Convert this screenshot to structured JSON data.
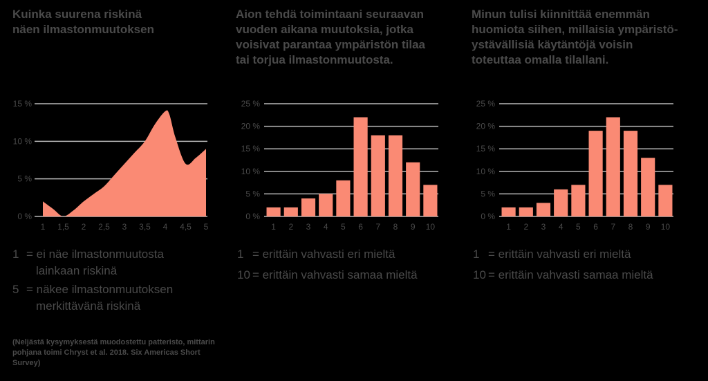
{
  "accent": "#fa8a74",
  "gridColor": "#b9b9b9",
  "panels": [
    {
      "title": "Kuinka suurena riskinä\nnäen ilmastonmuutoksen",
      "legend": [
        {
          "key": "1",
          "text1": "= ei näe ilmastonmuutosta",
          "text2": "lainkaan riskinä"
        },
        {
          "key": "5",
          "text1": "= näkee ilmastonmuutoksen",
          "text2": "merkittävänä riskinä"
        }
      ]
    },
    {
      "title": "Aion tehdä toimintaani seuraavan\nvuoden aikana muutoksia, jotka\nvoisivat parantaa ympäristön tilaa\ntai torjua ilmastonmuutosta.",
      "legend": [
        {
          "key": "1",
          "text1": "= erittäin vahvasti eri mieltä"
        },
        {
          "key": "10",
          "text1": "= erittäin vahvasti samaa mieltä"
        }
      ]
    },
    {
      "title": "Minun tulisi kiinnittää enemmän\nhuomiota siihen, millaisia ympäristö-\nystävällisiä käytäntöjä voisin\ntoteuttaa omalla tilallani.",
      "legend": [
        {
          "key": "1",
          "text1": "= erittäin vahvasti eri mieltä"
        },
        {
          "key": "10",
          "text1": "= erittäin vahvasti samaa mieltä"
        }
      ]
    }
  ],
  "note": "(Neljästä kysymyksestä muodostettu patteristo, mittarin pohjana toimi Chryst et al. 2018. Six Americas Short Survey)",
  "chart_data": [
    {
      "type": "area",
      "x": [
        1,
        1.25,
        1.5,
        1.75,
        2,
        2.25,
        2.5,
        2.75,
        3,
        3.25,
        3.5,
        3.75,
        4,
        4.1,
        4.25,
        4.5,
        4.75,
        5
      ],
      "y": [
        2,
        1,
        0,
        0.8,
        2,
        3,
        4,
        5.5,
        7,
        8.5,
        10,
        12.3,
        14,
        13.6,
        10.5,
        7,
        7.8,
        9
      ],
      "xticks": [
        "1",
        "1,5",
        "2",
        "2,5",
        "3",
        "3,5",
        "4",
        "4,5",
        "5"
      ],
      "yticks": [
        "0 %",
        "5 %",
        "10 %",
        "15 %"
      ],
      "ylim": [
        0,
        15
      ]
    },
    {
      "type": "bar",
      "categories": [
        "1",
        "2",
        "3",
        "4",
        "5",
        "6",
        "7",
        "8",
        "9",
        "10"
      ],
      "values": [
        2,
        2,
        4,
        5,
        8,
        22,
        18,
        18,
        12,
        7
      ],
      "yticks": [
        "0 %",
        "5 %",
        "10 %",
        "15 %",
        "20 %",
        "25 %"
      ],
      "ylim": [
        0,
        25
      ]
    },
    {
      "type": "bar",
      "categories": [
        "1",
        "2",
        "3",
        "4",
        "5",
        "6",
        "7",
        "8",
        "9",
        "10"
      ],
      "values": [
        2,
        2,
        3,
        6,
        7,
        19,
        22,
        19,
        13,
        7
      ],
      "yticks": [
        "0 %",
        "5 %",
        "10 %",
        "15 %",
        "20 %",
        "25 %"
      ],
      "ylim": [
        0,
        25
      ]
    }
  ]
}
